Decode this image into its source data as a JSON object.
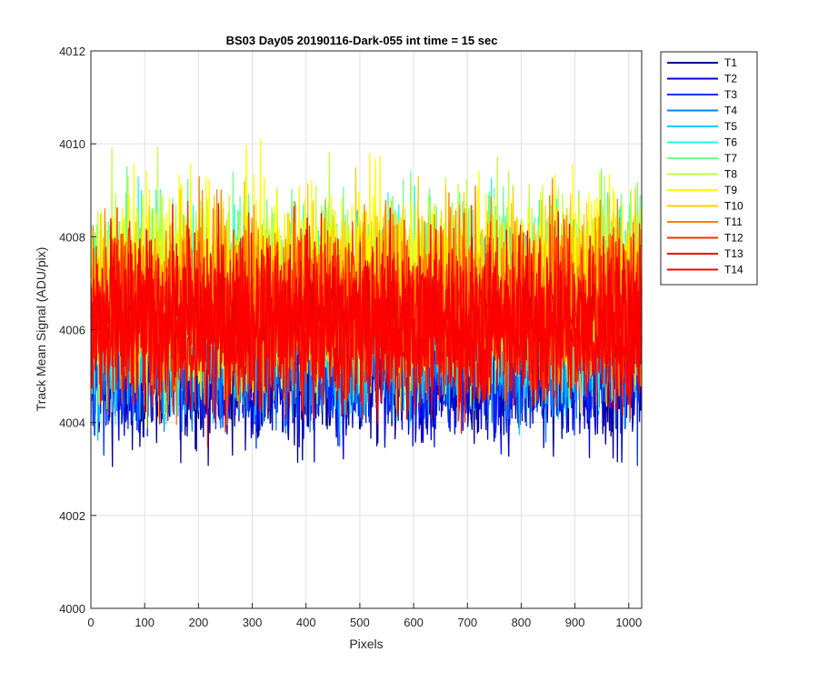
{
  "chart_data": {
    "type": "line",
    "title": "BS03 Day05 20190116-Dark-055 int time = 15 sec",
    "xlabel": "Pixels",
    "ylabel": "Track Mean Signal (ADU/pix)",
    "xlim": [
      0,
      1024
    ],
    "ylim": [
      4000,
      4012
    ],
    "x_ticks": [
      0,
      100,
      200,
      300,
      400,
      500,
      600,
      700,
      800,
      900,
      1000
    ],
    "y_ticks": [
      4000,
      4002,
      4004,
      4006,
      4008,
      4010,
      4012
    ],
    "grid": true,
    "legend_position": "outside-right-top",
    "num_points": 1024,
    "series": [
      {
        "name": "T1",
        "color": "#00008f",
        "mean": 4005.0,
        "spread": 0.75
      },
      {
        "name": "T2",
        "color": "#0000df",
        "mean": 4005.1,
        "spread": 0.75
      },
      {
        "name": "T3",
        "color": "#0030ff",
        "mean": 4005.3,
        "spread": 0.75
      },
      {
        "name": "T4",
        "color": "#0080ff",
        "mean": 4005.6,
        "spread": 0.8
      },
      {
        "name": "T5",
        "color": "#00cfff",
        "mean": 4006.2,
        "spread": 0.95
      },
      {
        "name": "T6",
        "color": "#20ffdf",
        "mean": 4006.6,
        "spread": 1.0
      },
      {
        "name": "T7",
        "color": "#70ff8f",
        "mean": 4006.9,
        "spread": 1.05
      },
      {
        "name": "T8",
        "color": "#bfff40",
        "mean": 4007.0,
        "spread": 1.05
      },
      {
        "name": "T9",
        "color": "#ffff00",
        "mean": 4007.0,
        "spread": 1.05
      },
      {
        "name": "T10",
        "color": "#ffcf00",
        "mean": 4006.8,
        "spread": 1.0
      },
      {
        "name": "T11",
        "color": "#ff8000",
        "mean": 4006.6,
        "spread": 1.0
      },
      {
        "name": "T12",
        "color": "#ff3000",
        "mean": 4006.4,
        "spread": 0.95
      },
      {
        "name": "T13",
        "color": "#ef0000",
        "mean": 4006.2,
        "spread": 0.9
      },
      {
        "name": "T14",
        "color": "#ff0000",
        "mean": 4006.0,
        "spread": 0.85
      }
    ]
  }
}
